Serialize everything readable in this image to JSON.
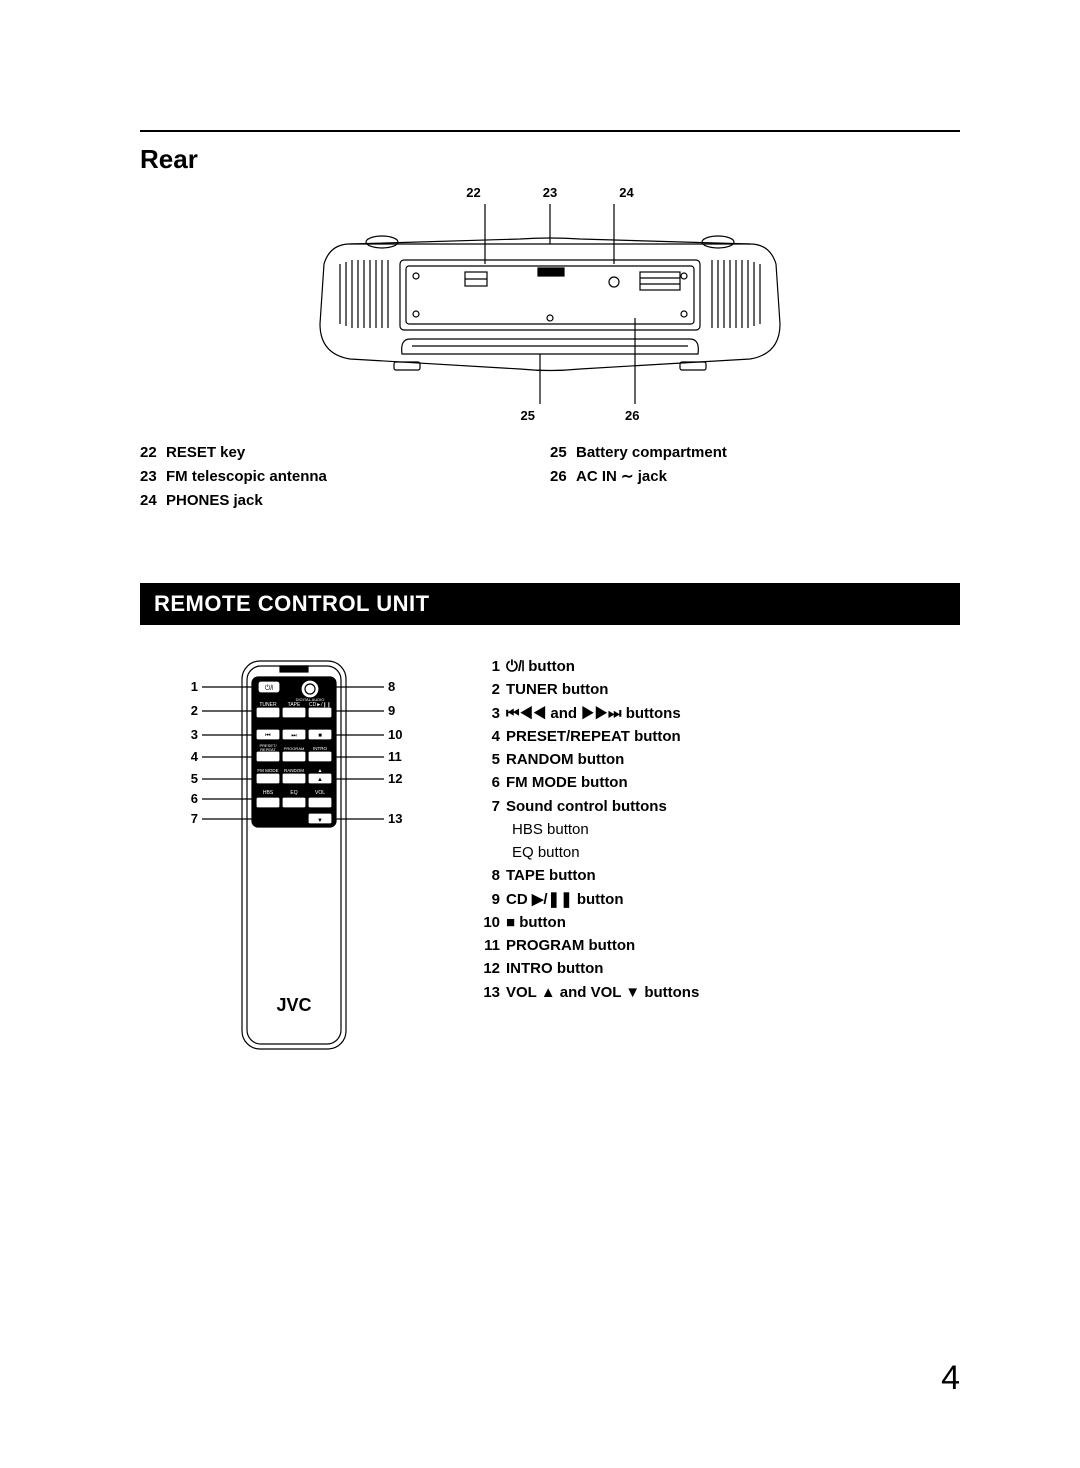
{
  "rear": {
    "title": "Rear",
    "top_callouts": [
      "22",
      "23",
      "24"
    ],
    "bottom_callouts": [
      "25",
      "26"
    ],
    "legend_left": [
      {
        "num": "22",
        "txt": "RESET key"
      },
      {
        "num": "23",
        "txt": "FM telescopic antenna"
      },
      {
        "num": "24",
        "txt": "PHONES jack"
      }
    ],
    "legend_right": [
      {
        "num": "25",
        "txt": "Battery compartment"
      },
      {
        "num": "26",
        "txt": "AC IN ∼ jack"
      }
    ]
  },
  "remote": {
    "bar_title": "REMOTE CONTROL UNIT",
    "left_callouts": [
      "1",
      "2",
      "3",
      "4",
      "5",
      "6",
      "7"
    ],
    "right_callouts": [
      "8",
      "9",
      "10",
      "11",
      "12",
      "13"
    ],
    "brand": "JVC",
    "buttons": {
      "tuner": "TUNER",
      "tape": "TAPE",
      "cd": "CD",
      "preset": "PRESET/\nREPEAT",
      "program": "PROGRAM",
      "intro": "INTRO",
      "fmmode": "FM MODE",
      "random": "RANDOM",
      "hbs": "HBS",
      "eq": "EQ",
      "vol": "VOL",
      "rew": "⏮",
      "ff": "⏭",
      "up": "▲",
      "down": "▼",
      "stop": "■",
      "play": "▶/❚❚",
      "power": "⏻/❘"
    },
    "list": [
      {
        "num": "1",
        "txt": "⏻/❘ button"
      },
      {
        "num": "2",
        "txt": "TUNER button"
      },
      {
        "num": "3",
        "txt": "⏮◀◀ and ▶▶⏭ buttons"
      },
      {
        "num": "4",
        "txt": "PRESET/REPEAT button"
      },
      {
        "num": "5",
        "txt": "RANDOM button"
      },
      {
        "num": "6",
        "txt": "FM MODE button"
      },
      {
        "num": "7",
        "txt": "Sound control buttons",
        "subs": [
          "HBS button",
          "EQ button"
        ]
      },
      {
        "num": "8",
        "txt": "TAPE button"
      },
      {
        "num": "9",
        "txt": "CD ▶/❚❚ button"
      },
      {
        "num": "10",
        "txt": "■ button"
      },
      {
        "num": "11",
        "txt": "PROGRAM button"
      },
      {
        "num": "12",
        "txt": "INTRO button"
      },
      {
        "num": "13",
        "txt": "VOL ▲ and VOL ▼ buttons"
      }
    ]
  },
  "page_number": "4",
  "colors": {
    "text": "#000000",
    "bg": "#ffffff",
    "bar_bg": "#000000",
    "bar_fg": "#ffffff",
    "stroke": "#000000"
  }
}
